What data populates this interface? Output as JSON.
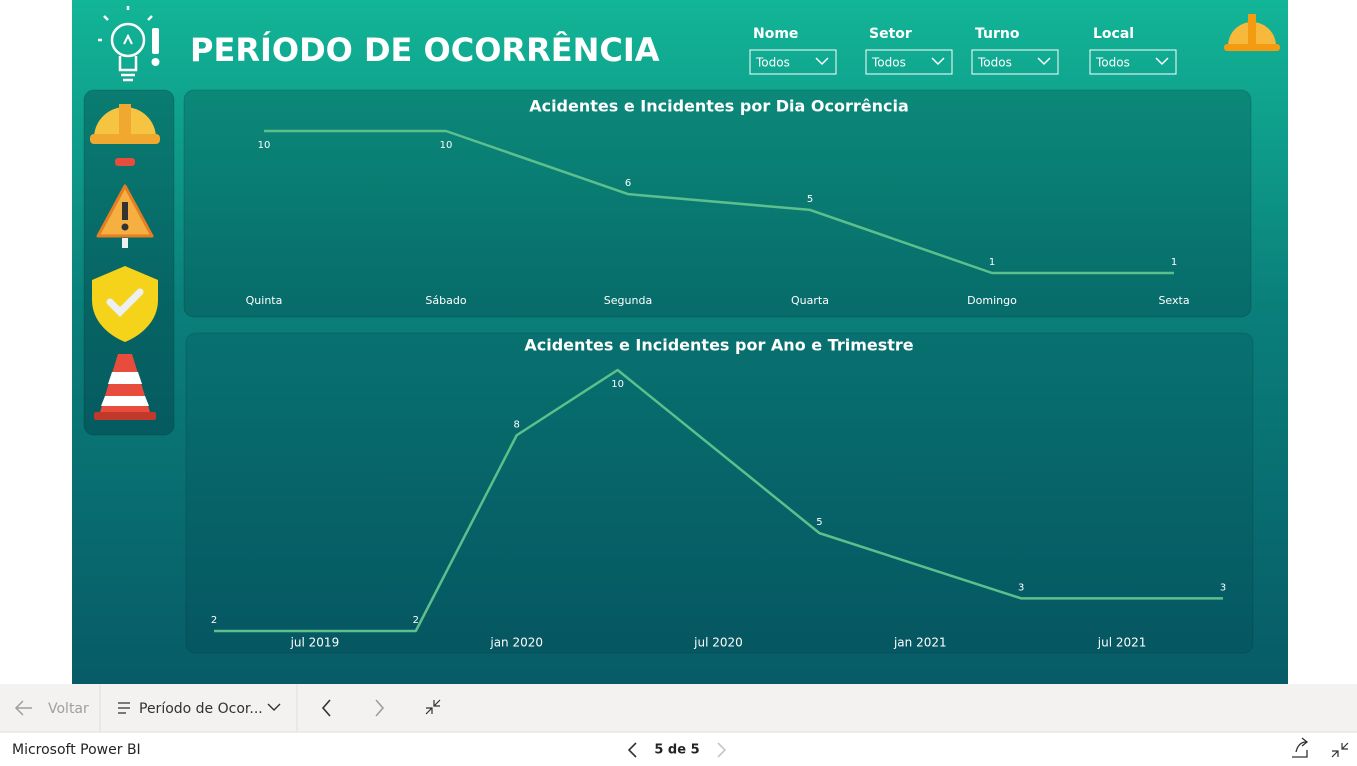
{
  "header": {
    "title": "PERÍODO DE OCORRÊNCIA"
  },
  "filters": [
    {
      "label": "Nome",
      "value": "Todos"
    },
    {
      "label": "Setor",
      "value": "Todos"
    },
    {
      "label": "Turno",
      "value": "Todos"
    },
    {
      "label": "Local",
      "value": "Todos"
    }
  ],
  "chart_data": [
    {
      "type": "line",
      "title": "Acidentes e Incidentes por Dia Ocorrência",
      "categories": [
        "Quinta",
        "Sábado",
        "Segunda",
        "Quarta",
        "Domingo",
        "Sexta"
      ],
      "values": [
        10,
        10,
        6,
        5,
        1,
        1
      ],
      "color": "#5cc08c"
    },
    {
      "type": "line",
      "title": "Acidentes e Incidentes por Ano e Trimestre",
      "x": [
        "2019-04",
        "2019-10",
        "2020-01",
        "2020-04",
        "2020-10",
        "2021-04",
        "2021-10"
      ],
      "values": [
        2,
        2,
        8,
        10,
        5,
        3,
        3
      ],
      "xlim": [
        "2019-04",
        "2021-10"
      ],
      "xticks": [
        {
          "value": "2019-07",
          "label": "jul 2019"
        },
        {
          "value": "2020-01",
          "label": "jan 2020"
        },
        {
          "value": "2020-07",
          "label": "jul 2020"
        },
        {
          "value": "2021-01",
          "label": "jan 2021"
        },
        {
          "value": "2021-07",
          "label": "jul 2021"
        }
      ],
      "color": "#5cc08c"
    }
  ],
  "navigation": {
    "back": "Voltar",
    "page": "Período de Ocor...",
    "app": "Microsoft Power BI",
    "pager": "5 de 5"
  }
}
